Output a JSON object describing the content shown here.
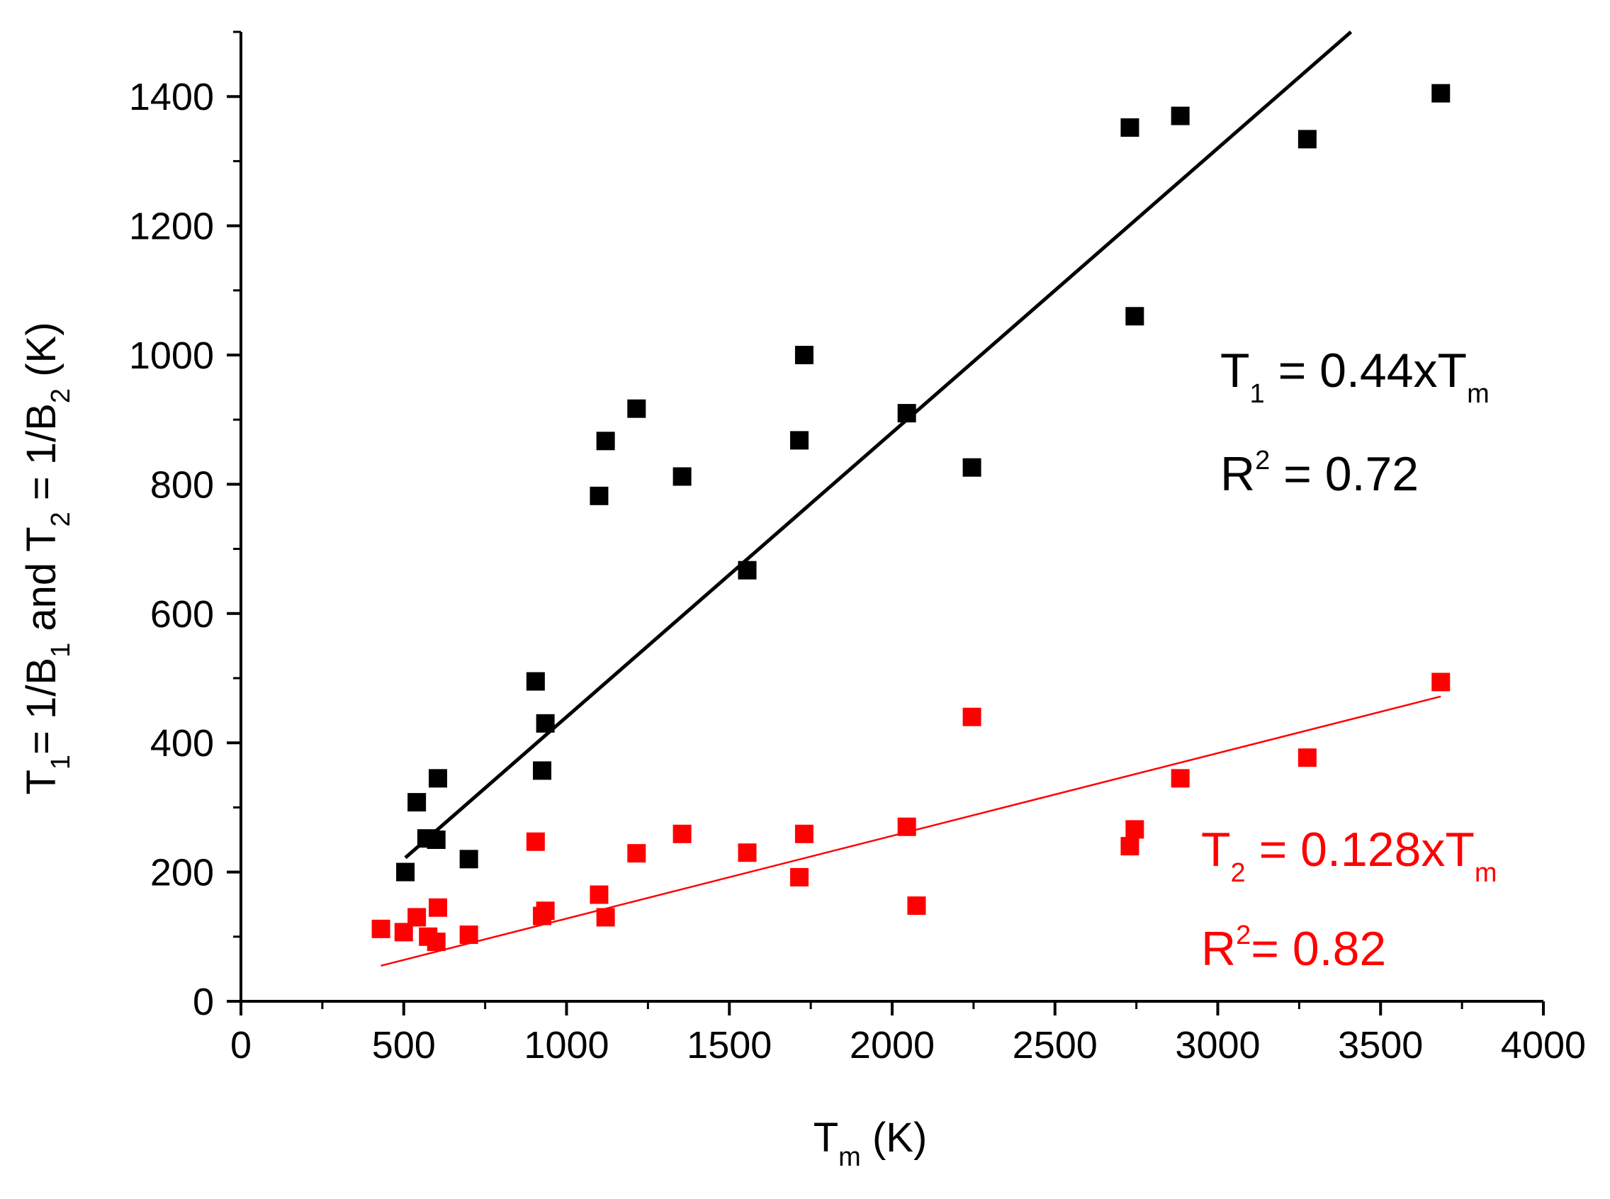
{
  "chart_data": {
    "type": "scatter",
    "xlabel": {
      "main": "T",
      "sub": "m",
      "rest": " (K)"
    },
    "ylabel": {
      "parts": [
        {
          "t": "T"
        },
        {
          "t": "1",
          "sub": true
        },
        {
          "t": "= 1/B"
        },
        {
          "t": "1",
          "sub": true
        },
        {
          "t": " and T"
        },
        {
          "t": "2",
          "sub": true
        },
        {
          "t": " = 1/B"
        },
        {
          "t": "2",
          "sub": true
        },
        {
          "t": " (K)"
        }
      ]
    },
    "xlim": [
      0,
      4000
    ],
    "ylim": [
      0,
      1500
    ],
    "xticks": [
      "0",
      "500",
      "1000",
      "1500",
      "2000",
      "2500",
      "3000",
      "3500",
      "4000"
    ],
    "yticks": [
      "0",
      "200",
      "400",
      "600",
      "800",
      "1000",
      "1200",
      "1400"
    ],
    "series": [
      {
        "name": "T1",
        "color": "#000000",
        "marker": "square",
        "points": [
          [
            505,
            200
          ],
          [
            540,
            308
          ],
          [
            570,
            252
          ],
          [
            600,
            250
          ],
          [
            605,
            345
          ],
          [
            700,
            220
          ],
          [
            905,
            495
          ],
          [
            925,
            357
          ],
          [
            935,
            430
          ],
          [
            1100,
            782
          ],
          [
            1120,
            867
          ],
          [
            1215,
            917
          ],
          [
            1355,
            812
          ],
          [
            1555,
            667
          ],
          [
            1715,
            868
          ],
          [
            1730,
            1000
          ],
          [
            2045,
            910
          ],
          [
            2245,
            826
          ],
          [
            2730,
            1352
          ],
          [
            2745,
            1060
          ],
          [
            2885,
            1370
          ],
          [
            3275,
            1334
          ],
          [
            3685,
            1405
          ]
        ],
        "fit": {
          "slope": 0.44,
          "x_from": 505,
          "x_to": 3685
        }
      },
      {
        "name": "T2",
        "color": "#ff0000",
        "marker": "square",
        "points": [
          [
            430,
            112
          ],
          [
            500,
            107
          ],
          [
            540,
            130
          ],
          [
            575,
            100
          ],
          [
            600,
            92
          ],
          [
            605,
            145
          ],
          [
            700,
            103
          ],
          [
            905,
            247
          ],
          [
            925,
            132
          ],
          [
            935,
            140
          ],
          [
            1100,
            165
          ],
          [
            1120,
            130
          ],
          [
            1215,
            229
          ],
          [
            1355,
            259
          ],
          [
            1555,
            230
          ],
          [
            1715,
            192
          ],
          [
            1730,
            259
          ],
          [
            2045,
            270
          ],
          [
            2075,
            148
          ],
          [
            2245,
            440
          ],
          [
            2730,
            240
          ],
          [
            2745,
            266
          ],
          [
            2885,
            345
          ],
          [
            3275,
            377
          ],
          [
            3685,
            494
          ]
        ],
        "fit": {
          "slope": 0.128,
          "x_from": 430,
          "x_to": 3685
        }
      }
    ],
    "annotations": {
      "t1_eq": {
        "a": "T",
        "sub1": "1",
        "b": " = 0.44xT",
        "sub2": "m"
      },
      "t1_r2": {
        "a": "R",
        "sup": "2",
        "b": " = 0.72"
      },
      "t2_eq": {
        "a": "T",
        "sub1": "2",
        "b": " = 0.128xT",
        "sub2": "m"
      },
      "t2_r2": {
        "a": "R",
        "sup": "2",
        "b": "= 0.82"
      }
    }
  }
}
